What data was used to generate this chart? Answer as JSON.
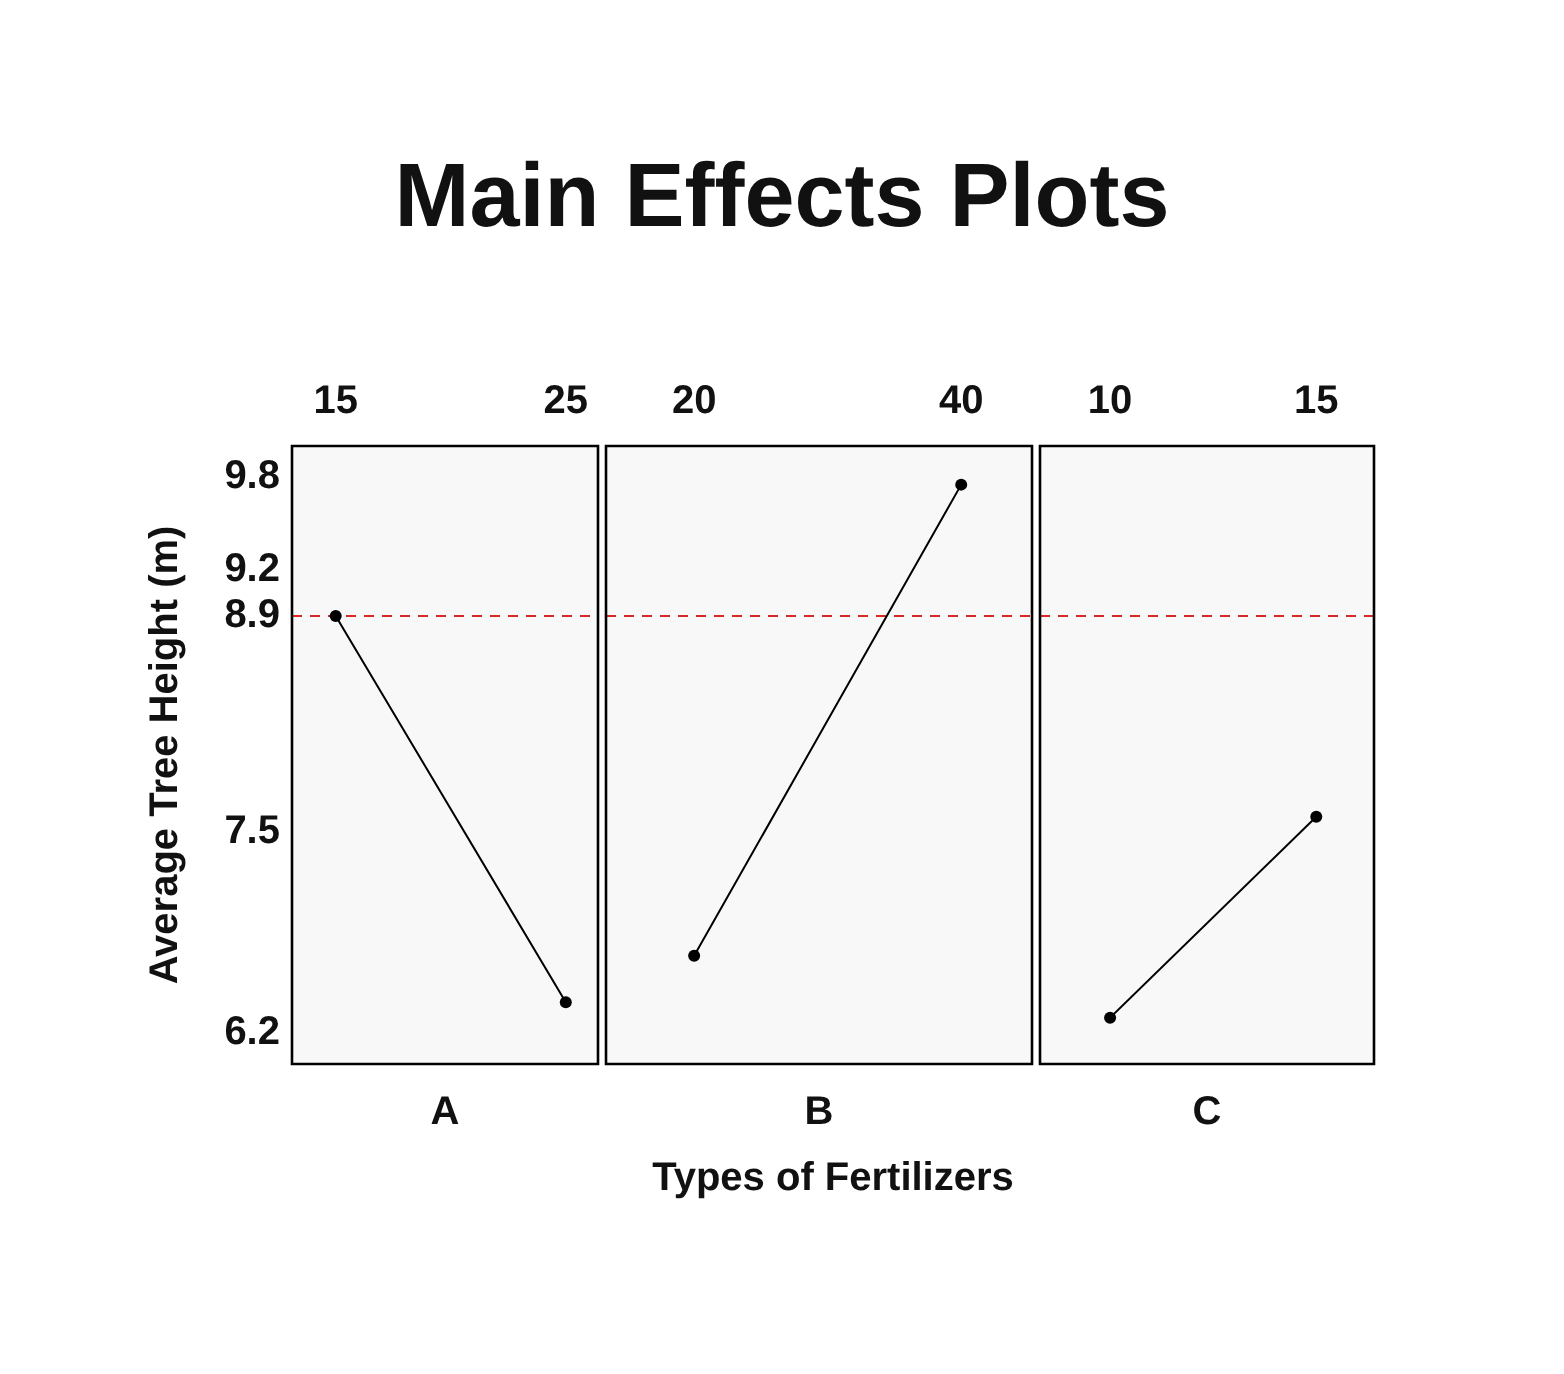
{
  "chart_data": [
    {
      "type": "line",
      "title": "Main Effects Plots",
      "xlabel": "A",
      "ylabel": "Average Tree Height (m)",
      "x": [
        15,
        25
      ],
      "xlim": [
        13.1,
        26.4
      ],
      "xticks": [
        15,
        25
      ],
      "ylim": [
        6.0,
        10.0
      ],
      "yticks": [
        6.2,
        7.5,
        8.9,
        9.2,
        9.8
      ],
      "series": [
        {
          "color": "#000000",
          "values": [
            8.9,
            6.4
          ]
        }
      ],
      "marker": "circle",
      "ref_lines": [
        {
          "axis": "y",
          "value": 8.9,
          "color": "#d62828",
          "line_style": "dashed"
        }
      ]
    },
    {
      "type": "line",
      "xlabel": "B",
      "annotations": [
        "Types of Fertilizers"
      ],
      "x": [
        20,
        40
      ],
      "xlim": [
        13.4,
        45.3
      ],
      "xticks": [
        20,
        40
      ],
      "ylim": [
        6.0,
        10.0
      ],
      "tick_labels": "x",
      "series": [
        {
          "color": "#000000",
          "values": [
            6.7,
            9.75
          ]
        }
      ],
      "marker": "circle",
      "ref_lines": [
        {
          "axis": "y",
          "value": 8.9,
          "color": "#d62828",
          "line_style": "dashed"
        }
      ]
    },
    {
      "type": "line",
      "xlabel": "C",
      "x": [
        10,
        15
      ],
      "xlim": [
        8.3,
        16.4
      ],
      "xticks": [
        10,
        15
      ],
      "ylim": [
        6.0,
        10.0
      ],
      "tick_labels": "x",
      "series": [
        {
          "color": "#000000",
          "values": [
            6.3,
            7.6
          ]
        }
      ],
      "marker": "circle",
      "ref_lines": [
        {
          "axis": "y",
          "value": 8.9,
          "color": "#d62828",
          "line_style": "dashed"
        }
      ]
    }
  ]
}
